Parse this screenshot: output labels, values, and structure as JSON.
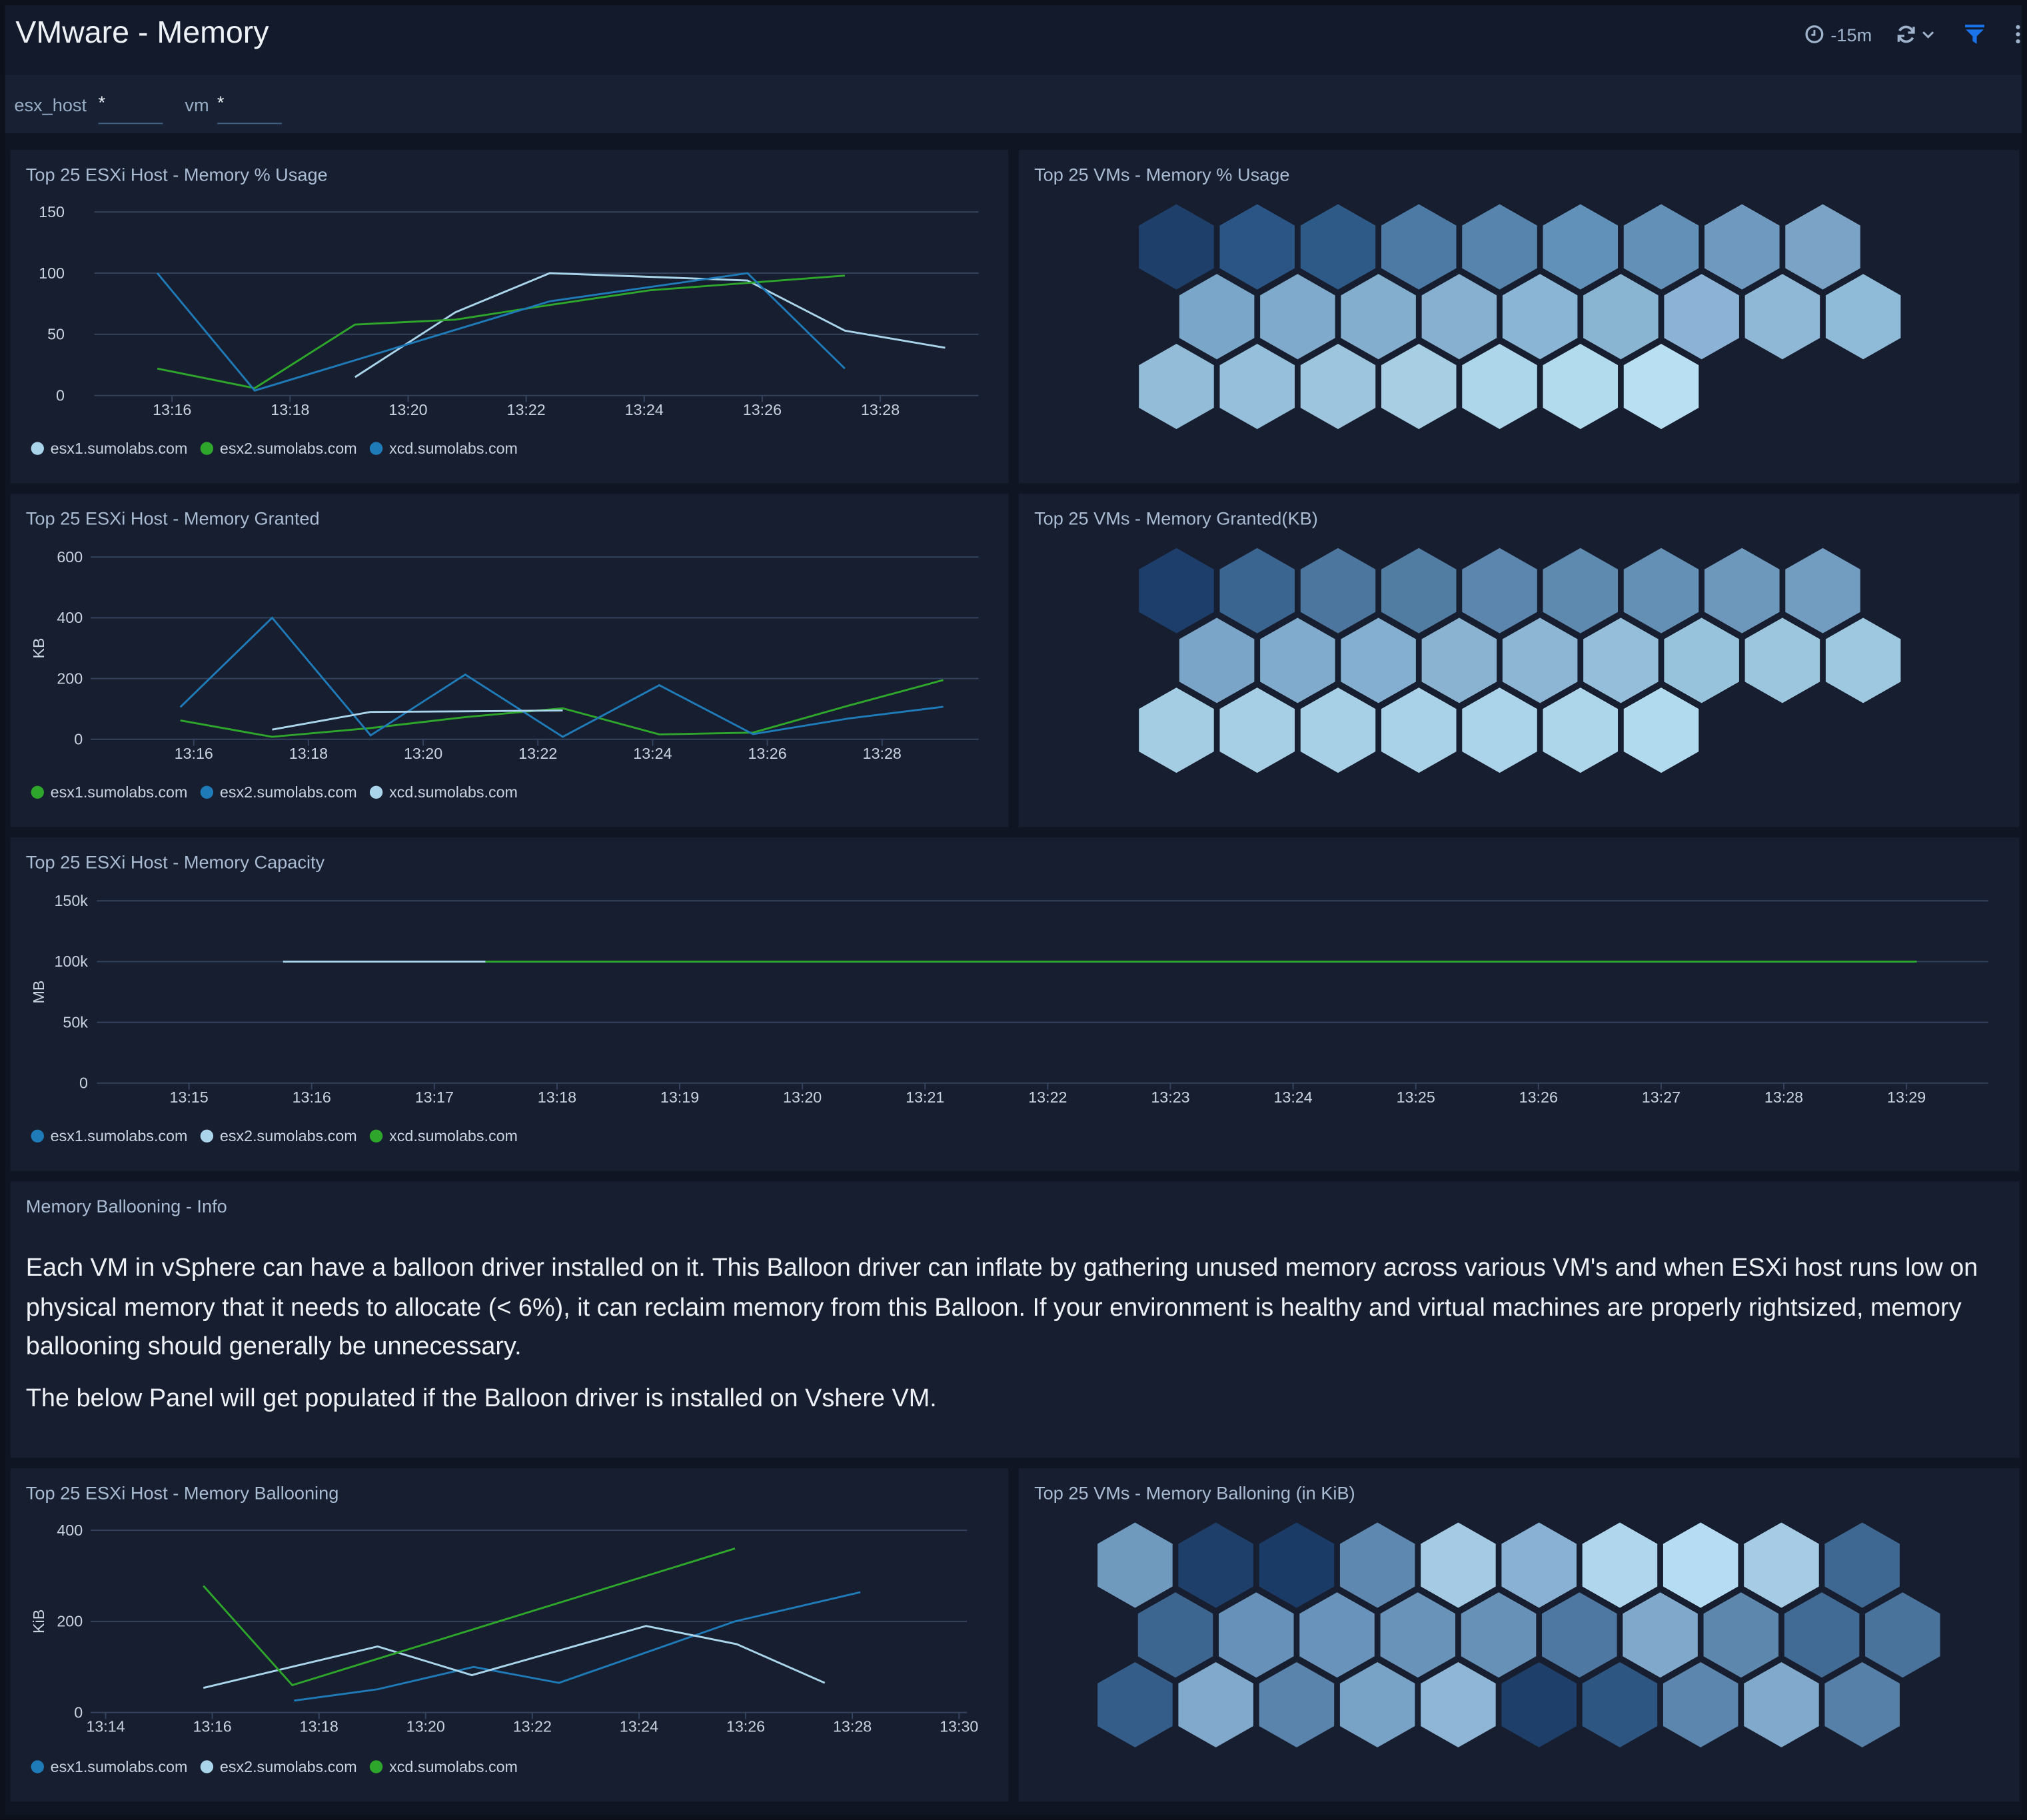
{
  "header": {
    "title": "VMware - Memory",
    "time_range": "-15m",
    "icons": [
      "clock-icon",
      "refresh-icon",
      "chevron-down-icon",
      "filter-icon",
      "kebab-menu-icon"
    ],
    "filter_color": "#1a73e8"
  },
  "filters": [
    {
      "label": "esx_host",
      "value": "*"
    },
    {
      "label": "vm",
      "value": "*"
    }
  ],
  "panels": {
    "host_usage": {
      "title": "Top 25 ESXi Host - Memory % Usage"
    },
    "vm_usage": {
      "title": "Top 25 VMs - Memory % Usage"
    },
    "host_granted": {
      "title": "Top 25 ESXi Host - Memory Granted"
    },
    "vm_granted": {
      "title": "Top 25 VMs - Memory Granted(KB)"
    },
    "host_capacity": {
      "title": "Top 25 ESXi Host - Memory Capacity"
    },
    "info": {
      "title": "Memory Ballooning - Info",
      "paragraphs": [
        "Each VM in vSphere can have a balloon driver installed on it. This Balloon driver can inflate by gathering unused memory across various VM's and when ESXi host runs low on physical memory that it needs to allocate (< 6%), it can reclaim memory from this Balloon. If your environment is healthy and virtual machines are properly rightsized, memory ballooning should generally be unnecessary.",
        "The below Panel will get populated if the Balloon driver is installed on Vshere VM."
      ]
    },
    "host_ballooning": {
      "title": "Top 25 ESXi Host - Memory Ballooning"
    },
    "vm_ballooning": {
      "title": "Top 25 VMs - Memory Balloning (in KiB)"
    }
  },
  "chart_data": [
    {
      "id": "host_usage",
      "type": "line",
      "ylabel": "",
      "ylim": [
        0,
        150
      ],
      "yticks": [
        0,
        50,
        100,
        150
      ],
      "ytick_labels": [
        "0",
        "50",
        "100",
        "150"
      ],
      "xlim": [
        "13:14:41",
        "13:29:40"
      ],
      "xticks": [
        "13:16",
        "13:18",
        "13:20",
        "13:22",
        "13:24",
        "13:26",
        "13:28"
      ],
      "grid": true,
      "legend": "bottom-left",
      "series": [
        {
          "name": "esx1.sumolabs.com",
          "color": "#a9d4ea",
          "points": [
            [
              "13:19:06",
              15
            ],
            [
              "13:20:48",
              68
            ],
            [
              "13:22:24",
              100
            ],
            [
              "13:25:45",
              94
            ],
            [
              "13:27:24",
              53
            ],
            [
              "13:29:06",
              39
            ]
          ]
        },
        {
          "name": "esx2.sumolabs.com",
          "color": "#2ea52b",
          "points": [
            [
              "13:15:45",
              22
            ],
            [
              "13:17:24",
              6
            ],
            [
              "13:19:06",
              58
            ],
            [
              "13:20:48",
              62
            ],
            [
              "13:22:24",
              74
            ],
            [
              "13:24:06",
              86
            ],
            [
              "13:25:45",
              92
            ],
            [
              "13:27:24",
              98
            ]
          ]
        },
        {
          "name": "xcd.sumolabs.com",
          "color": "#1f7ab8",
          "points": [
            [
              "13:15:45",
              100
            ],
            [
              "13:17:24",
              4
            ],
            [
              "13:22:24",
              77
            ],
            [
              "13:25:45",
              100
            ],
            [
              "13:27:24",
              22
            ]
          ]
        }
      ]
    },
    {
      "id": "host_granted",
      "type": "line",
      "ylabel": "KB",
      "ylim": [
        0,
        600
      ],
      "yticks": [
        0,
        200,
        400,
        600
      ],
      "ytick_labels": [
        "0",
        "200",
        "400",
        "600"
      ],
      "xlim": [
        "13:14:12",
        "13:29:41"
      ],
      "xticks": [
        "13:16",
        "13:18",
        "13:20",
        "13:22",
        "13:24",
        "13:26",
        "13:28"
      ],
      "grid": true,
      "legend": "bottom-left",
      "series": [
        {
          "name": "esx1.sumolabs.com",
          "color": "#2ea52b",
          "points": [
            [
              "13:15:46",
              62
            ],
            [
              "13:17:22",
              8
            ],
            [
              "13:19:05",
              37
            ],
            [
              "13:20:44",
              73
            ],
            [
              "13:22:26",
              102
            ],
            [
              "13:24:07",
              16
            ],
            [
              "13:25:45",
              22
            ],
            [
              "13:27:24",
              110
            ],
            [
              "13:29:04",
              195
            ]
          ]
        },
        {
          "name": "esx2.sumolabs.com",
          "color": "#1f7ab8",
          "points": [
            [
              "13:15:46",
              106
            ],
            [
              "13:17:22",
              400
            ],
            [
              "13:19:05",
              13
            ],
            [
              "13:20:44",
              213
            ],
            [
              "13:22:26",
              8
            ],
            [
              "13:24:07",
              178
            ],
            [
              "13:25:45",
              17
            ],
            [
              "13:27:24",
              68
            ],
            [
              "13:29:04",
              107
            ]
          ]
        },
        {
          "name": "xcd.sumolabs.com",
          "color": "#a9d4ea",
          "points": [
            [
              "13:17:22",
              32
            ],
            [
              "13:19:05",
              90
            ],
            [
              "13:20:44",
              92
            ],
            [
              "13:22:26",
              95
            ]
          ]
        }
      ]
    },
    {
      "id": "host_capacity",
      "type": "line",
      "ylabel": "MB",
      "ylim": [
        0,
        150000
      ],
      "yticks": [
        0,
        50000,
        100000,
        150000
      ],
      "ytick_labels": [
        "0",
        "50k",
        "100k",
        "150k"
      ],
      "xlim": [
        "13:14:15",
        "13:29:40"
      ],
      "xticks": [
        "13:15",
        "13:16",
        "13:17",
        "13:18",
        "13:19",
        "13:20",
        "13:21",
        "13:22",
        "13:23",
        "13:24",
        "13:25",
        "13:26",
        "13:27",
        "13:28",
        "13:29"
      ],
      "grid": true,
      "legend": "bottom-left",
      "series": [
        {
          "name": "esx1.sumolabs.com",
          "color": "#1f7ab8",
          "points": [
            [
              "13:17:25",
              100000
            ],
            [
              "13:29:05",
              100000
            ]
          ]
        },
        {
          "name": "esx2.sumolabs.com",
          "color": "#a9d4ea",
          "points": [
            [
              "13:15:46",
              100000
            ],
            [
              "13:17:25",
              100000
            ]
          ]
        },
        {
          "name": "xcd.sumolabs.com",
          "color": "#2ea52b",
          "points": [
            [
              "13:17:25",
              100000
            ],
            [
              "13:29:05",
              100000
            ]
          ]
        }
      ]
    },
    {
      "id": "host_ballooning",
      "type": "line",
      "ylabel": "KiB",
      "ylim": [
        0,
        400
      ],
      "yticks": [
        0,
        200,
        400
      ],
      "ytick_labels": [
        "0",
        "200",
        "400"
      ],
      "xlim": [
        "13:13:43",
        "13:30:09"
      ],
      "xticks": [
        "13:14",
        "13:16",
        "13:18",
        "13:20",
        "13:22",
        "13:24",
        "13:26",
        "13:28",
        "13:30"
      ],
      "grid": true,
      "legend": "bottom-left",
      "series": [
        {
          "name": "esx1.sumolabs.com",
          "color": "#1f7ab8",
          "points": [
            [
              "13:17:32",
              26
            ],
            [
              "13:19:06",
              51
            ],
            [
              "13:20:54",
              100
            ],
            [
              "13:22:30",
              65
            ],
            [
              "13:25:48",
              200
            ],
            [
              "13:28:09",
              264
            ]
          ]
        },
        {
          "name": "esx2.sumolabs.com",
          "color": "#a9d4ea",
          "points": [
            [
              "13:15:50",
              54
            ],
            [
              "13:19:06",
              145
            ],
            [
              "13:20:52",
              82
            ],
            [
              "13:24:08",
              190
            ],
            [
              "13:25:50",
              150
            ],
            [
              "13:27:29",
              65
            ]
          ]
        },
        {
          "name": "xcd.sumolabs.com",
          "color": "#2ea52b",
          "points": [
            [
              "13:15:50",
              278
            ],
            [
              "13:17:30",
              60
            ],
            [
              "13:25:48",
              360
            ]
          ]
        }
      ]
    }
  ],
  "honeycombs": {
    "vm_usage": {
      "rows": [
        [
          "#1e3f6a",
          "#2b5585",
          "#2e5a88",
          "#4d7aa5",
          "#5784ad",
          "#6190b8",
          "#6390b6",
          "#7099bf",
          "#7aa3c6"
        ],
        [
          "#7aa7c9",
          "#80aacb",
          "#83aece",
          "#86afd0",
          "#8ab5d5",
          "#8ab5d2",
          "#8cb2d6",
          "#8fb8d6",
          "#8fbad8"
        ],
        [
          "#93bcd8",
          "#95bfda",
          "#9dc5dd",
          "#a7cee3",
          "#aed6ea",
          "#b3dbee",
          "#b8dff2"
        ]
      ]
    },
    "vm_granted": {
      "rows": [
        [
          "#1d3e6b",
          "#3b6591",
          "#4c769d",
          "#527da3",
          "#5c86ad",
          "#5f8ab0",
          "#6590b5",
          "#6d98bb",
          "#729cc0"
        ],
        [
          "#7aa5c8",
          "#80abcc",
          "#84afd0",
          "#8ab3d2",
          "#8db5d4",
          "#94bed9",
          "#98c3dc",
          "#9bc6de",
          "#9dc8e0"
        ],
        [
          "#a4cde4",
          "#a6cfe6",
          "#a7d0e7",
          "#a9d2e8",
          "#abd3e9",
          "#aed6ea",
          "#b2daee"
        ]
      ]
    },
    "vm_ballooning": {
      "rows": [
        [
          "#7099be",
          "#1f3f6b",
          "#1b3b67",
          "#5e88b0",
          "#a4cbe3",
          "#88b1d3",
          "#afd6ec",
          "#b5dcf2",
          "#a5cce4",
          "#3e6891"
        ],
        [
          "#3c6590",
          "#6791b8",
          "#6993ba",
          "#6a93b9",
          "#6891b8",
          "#4e78a2",
          "#80a8cb",
          "#5e87ae",
          "#416b95",
          "#4a739c"
        ],
        [
          "#345d8a",
          "#80a9cb",
          "#5a84ac",
          "#78a2c6",
          "#8fb6d6",
          "#1d3f6a",
          "#2e5683",
          "#5c86ae",
          "#80a9cb",
          "#5680a8"
        ]
      ]
    }
  }
}
